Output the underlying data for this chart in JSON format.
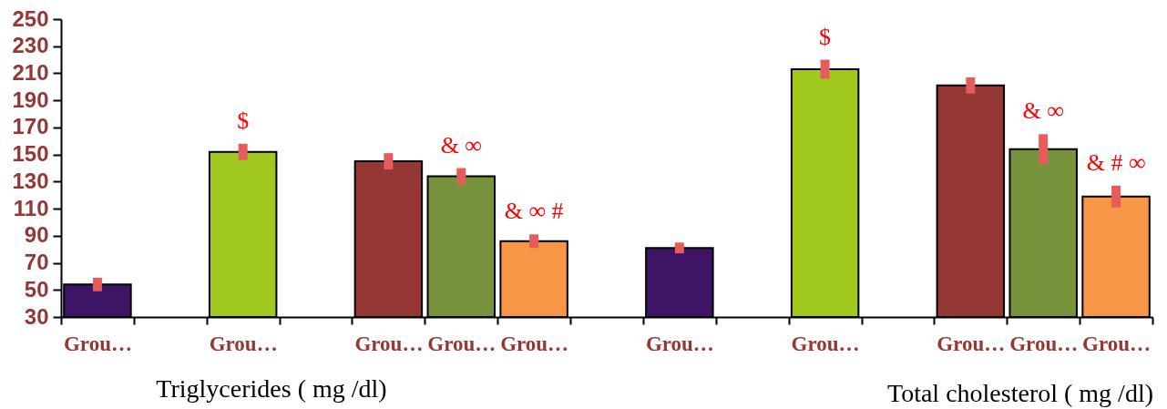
{
  "chart_data": {
    "type": "bar",
    "categories": [
      "Grou…",
      null,
      "Grou…",
      null,
      "Grou…",
      "Grou…",
      "Grou…",
      null,
      "Grou…",
      null,
      "Grou…",
      null,
      "Grou…",
      "Grou…",
      "Grou…"
    ],
    "values": [
      54,
      null,
      152,
      null,
      145,
      134,
      86,
      null,
      81,
      null,
      213,
      null,
      201,
      154,
      119
    ],
    "colors": [
      "#3e1566",
      null,
      "#a0c81e",
      null,
      "#953735",
      "#77933c",
      "#f79646",
      null,
      "#3e1566",
      null,
      "#a0c81e",
      null,
      "#953735",
      "#77933c",
      "#f79646"
    ],
    "errors": [
      5,
      null,
      6,
      null,
      6,
      6,
      5,
      null,
      4,
      null,
      7,
      null,
      6,
      11,
      8
    ],
    "value_labels": [
      null,
      null,
      "$",
      null,
      null,
      "& ∞",
      "& ∞ #",
      null,
      null,
      null,
      "$",
      null,
      null,
      "& ∞",
      "& # ∞"
    ],
    "ylim": [
      30,
      250
    ],
    "yticks": [
      30,
      50,
      70,
      90,
      110,
      130,
      150,
      170,
      190,
      210,
      230,
      250
    ],
    "annotations": [
      "Triglycerides ( mg /dl)",
      "Total cholesterol ( mg /dl)"
    ]
  }
}
